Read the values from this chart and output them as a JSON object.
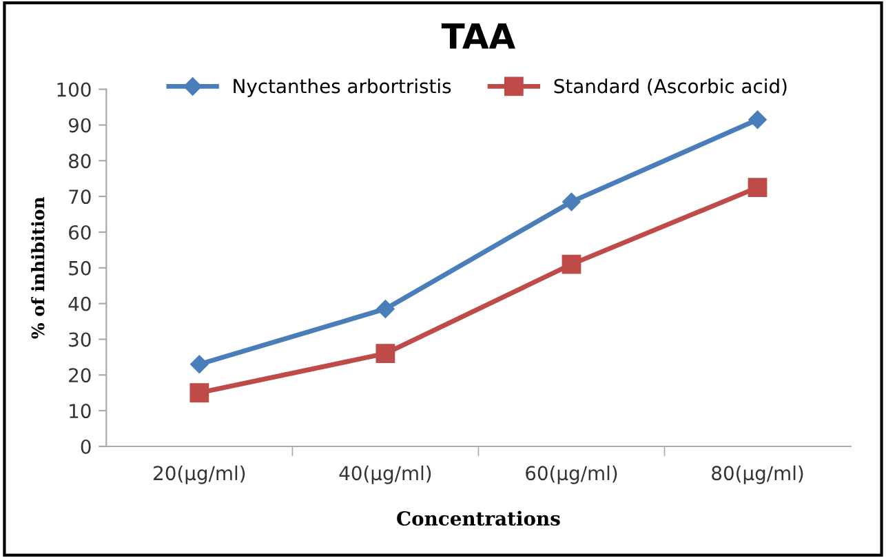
{
  "chart_data": {
    "type": "line",
    "title": "TAA",
    "xlabel": "Concentrations",
    "ylabel": "% of inhibition",
    "categories": [
      "20(µg/ml)",
      "40(µg/ml)",
      "60(µg/ml)",
      "80(µg/ml)"
    ],
    "series": [
      {
        "name": "Nyctanthes arbortristis",
        "color": "#4a7ebb",
        "values": [
          23,
          38.5,
          68.5,
          91.5
        ],
        "marker": "diamond"
      },
      {
        "name": "Standard (Ascorbic acid)",
        "color": "#be4b48",
        "values": [
          15,
          26,
          51,
          72.5
        ],
        "marker": "square"
      }
    ],
    "ylim": [
      0,
      100
    ],
    "yticks": [
      0,
      10,
      20,
      30,
      40,
      50,
      60,
      70,
      80,
      90,
      100
    ],
    "grid": false,
    "legend": "top"
  }
}
